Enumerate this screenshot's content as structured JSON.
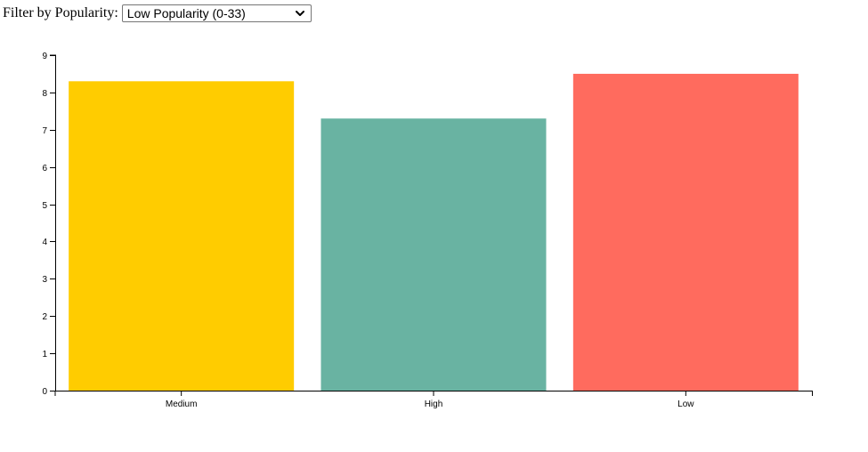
{
  "filter": {
    "label": "Filter by Popularity:",
    "selected": "Low Popularity (0-33)"
  },
  "colors": {
    "Medium": "#ffcc00",
    "High": "#69b3a2",
    "Low": "#ff6b5e"
  },
  "chart_data": {
    "type": "bar",
    "categories": [
      "Medium",
      "High",
      "Low"
    ],
    "values": [
      8.3,
      7.3,
      8.5
    ],
    "ylim": [
      0,
      9
    ],
    "yticks": [
      0,
      1,
      2,
      3,
      4,
      5,
      6,
      7,
      8,
      9
    ],
    "title": "",
    "xlabel": "",
    "ylabel": "",
    "grid": false
  }
}
